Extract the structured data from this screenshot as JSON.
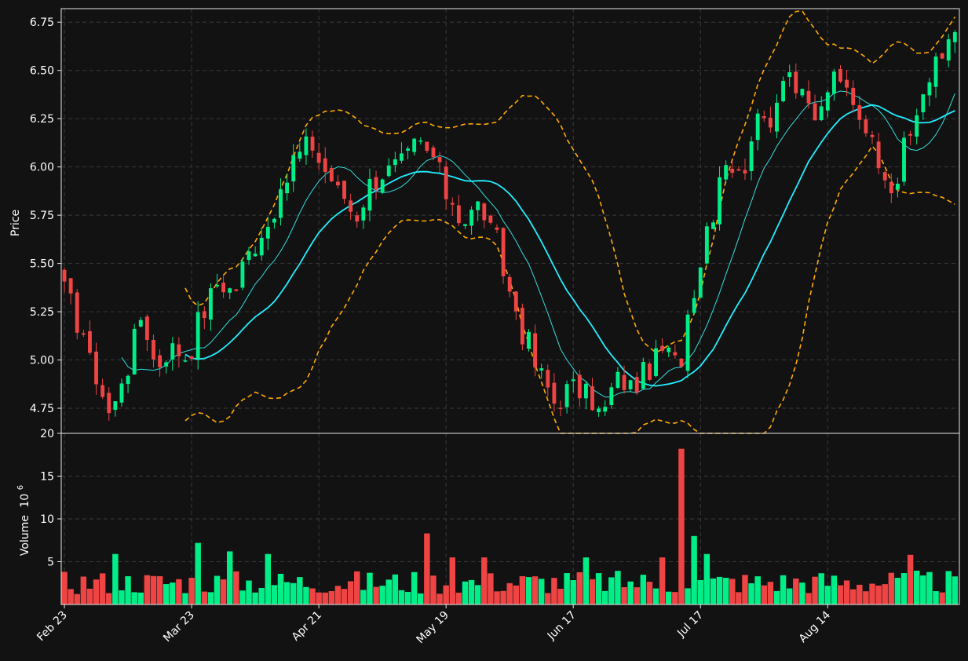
{
  "chart_data": [
    {
      "type": "candlestick",
      "ylabel": "Price",
      "ylim": [
        4.62,
        6.82
      ],
      "yticks": [
        4.75,
        5.0,
        5.25,
        5.5,
        5.75,
        6.0,
        6.25,
        6.5,
        6.75
      ],
      "ytick_labels": [
        "4.75",
        "5.00",
        "5.25",
        "5.50",
        "5.75",
        "6.00",
        "6.25",
        "6.50",
        "6.75"
      ],
      "grid": true,
      "up_color": "#00ee88",
      "down_color": "#ee4444",
      "overlays": [
        {
          "kind": "moving-average-short",
          "color": "#33dddd"
        },
        {
          "kind": "moving-average-long",
          "color": "#22eeff"
        },
        {
          "kind": "bollinger-bands",
          "color": "#ffaa00",
          "style": "dashed"
        }
      ],
      "ohlc_keypoints": [
        5.36,
        5.18,
        4.92,
        4.72,
        4.95,
        5.22,
        4.98,
        5.06,
        5.02,
        5.25,
        5.4,
        5.36,
        5.55,
        5.68,
        5.82,
        6.05,
        6.12,
        5.98,
        5.86,
        5.75,
        5.92,
        5.98,
        6.02,
        6.12,
        6.05,
        5.85,
        5.72,
        5.8,
        5.64,
        5.35,
        5.12,
        4.92,
        4.78,
        4.86,
        4.82,
        4.72,
        4.9,
        4.86,
        4.95,
        5.05,
        4.98,
        5.38,
        5.72,
        6.05,
        5.95,
        6.22,
        6.26,
        6.52,
        6.35,
        6.25,
        6.45,
        6.4,
        6.25,
        6.05,
        5.9,
        6.15,
        6.4,
        6.55,
        6.75
      ]
    },
    {
      "type": "bar",
      "ylabel": "Volume",
      "ylabel_exponent": "6",
      "ylim": [
        0,
        20
      ],
      "yticks": [
        5,
        10,
        15,
        20
      ],
      "ytick_labels": [
        "5",
        "10",
        "15",
        "20"
      ],
      "xtick_labels": [
        "Feb 23",
        "Mar 23",
        "Apr 21",
        "May 19",
        "Jun 17",
        "Jul 17",
        "Aug 14"
      ],
      "grid": true,
      "spike_values": [
        {
          "index": 8,
          "value": 5.9
        },
        {
          "index": 21,
          "value": 7.2
        },
        {
          "index": 26,
          "value": 6.2
        },
        {
          "index": 32,
          "value": 5.9
        },
        {
          "index": 57,
          "value": 8.3
        },
        {
          "index": 61,
          "value": 5.5
        },
        {
          "index": 66,
          "value": 5.5
        },
        {
          "index": 82,
          "value": 5.5
        },
        {
          "index": 94,
          "value": 5.5
        },
        {
          "index": 97,
          "value": 18.2
        },
        {
          "index": 99,
          "value": 8.0
        },
        {
          "index": 101,
          "value": 5.9
        },
        {
          "index": 133,
          "value": 5.8
        }
      ]
    }
  ],
  "colors": {
    "background": "#121212",
    "up": "#00ee88",
    "down": "#ee4444",
    "ma_short": "#33dddd",
    "ma_long": "#22eeff",
    "band": "#ffaa00",
    "text": "#ffffff",
    "grid": "#3a3a3a"
  }
}
